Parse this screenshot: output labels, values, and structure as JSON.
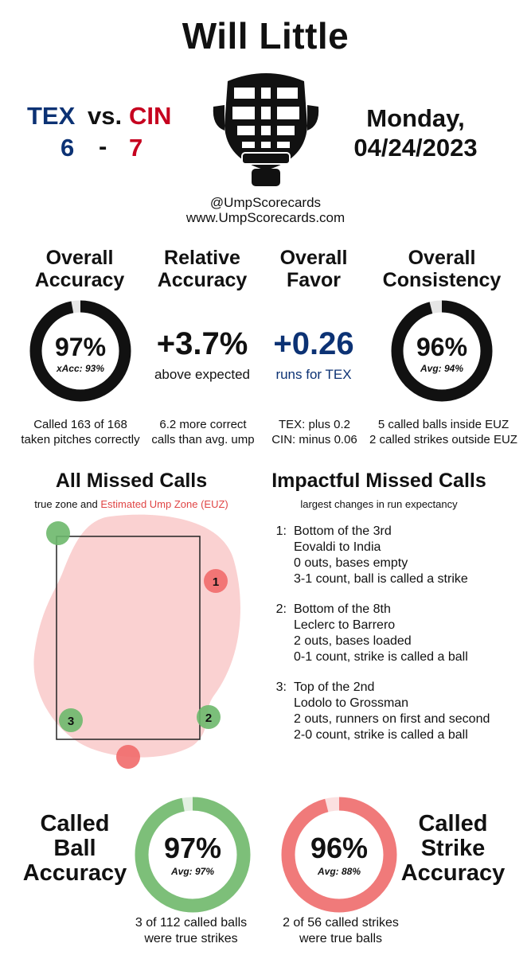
{
  "umpire_name": "Will Little",
  "game": {
    "away_team": "TEX",
    "vs": "vs.",
    "home_team": "CIN",
    "away_score": "6",
    "dash": "-",
    "home_score": "7",
    "day": "Monday,",
    "date": "04/24/2023",
    "away_color": "#0c3274",
    "home_color": "#c6011f"
  },
  "credits": {
    "handle": "@UmpScorecards",
    "site": "www.UmpScorecards.com"
  },
  "overall_accuracy": {
    "heading_line1": "Overall",
    "heading_line2": "Accuracy",
    "value": "97%",
    "value_fraction": 0.97,
    "sub": "xAcc: 93%",
    "desc_line1": "Called 163 of 168",
    "desc_line2": "taken pitches correctly"
  },
  "relative_accuracy": {
    "heading_line1": "Relative",
    "heading_line2": "Accuracy",
    "value": "+3.7%",
    "sub": "above expected",
    "desc_line1": "6.2 more correct",
    "desc_line2": "calls than avg. ump"
  },
  "overall_favor": {
    "heading_line1": "Overall",
    "heading_line2": "Favor",
    "value": "+0.26",
    "sub": "runs for TEX",
    "desc_line1": "TEX: plus 0.2",
    "desc_line2": "CIN: minus 0.06"
  },
  "overall_consistency": {
    "heading_line1": "Overall",
    "heading_line2": "Consistency",
    "value": "96%",
    "value_fraction": 0.96,
    "sub": "Avg: 94%",
    "desc_line1": "5 called balls inside EUZ",
    "desc_line2": "2 called strikes outside EUZ"
  },
  "missed_calls": {
    "heading": "All Missed Calls",
    "legend_prefix": "true zone and",
    "legend_euz": "Estimated Ump Zone (EUZ)",
    "pitch_labels": [
      "1",
      "2",
      "3"
    ],
    "ball_color": "#6db86b",
    "strike_color": "#f16a6a",
    "euz_color": "#f9c9c9"
  },
  "impactful": {
    "heading": "Impactful Missed Calls",
    "subheading": "largest changes in run expectancy",
    "calls": [
      {
        "num": "1:",
        "inning": "Bottom of the 3rd",
        "matchup": "Eovaldi to India",
        "situation": "0 outs, bases empty",
        "count": "3-1 count, ball is called a strike"
      },
      {
        "num": "2:",
        "inning": "Bottom of the 8th",
        "matchup": "Leclerc to Barrero",
        "situation": "2 outs, bases loaded",
        "count": "0-1 count, strike is called a ball"
      },
      {
        "num": "3:",
        "inning": "Top of the 2nd",
        "matchup": "Lodolo to Grossman",
        "situation": "2 outs, runners on first and second",
        "count": "2-0 count, strike is called a ball"
      }
    ]
  },
  "ball_accuracy": {
    "heading_line1": "Called",
    "heading_line2": "Ball",
    "heading_line3": "Accuracy",
    "value": "97%",
    "value_fraction": 0.97,
    "sub": "Avg: 97%",
    "desc_line1": "3 of 112 called balls",
    "desc_line2": "were true strikes",
    "color": "#7dbf79"
  },
  "strike_accuracy": {
    "heading_line1": "Called",
    "heading_line2": "Strike",
    "heading_line3": "Accuracy",
    "value": "96%",
    "value_fraction": 0.96,
    "sub": "Avg: 88%",
    "desc_line1": "2 of 56 called strikes",
    "desc_line2": "were true balls",
    "color": "#f07a7a"
  }
}
